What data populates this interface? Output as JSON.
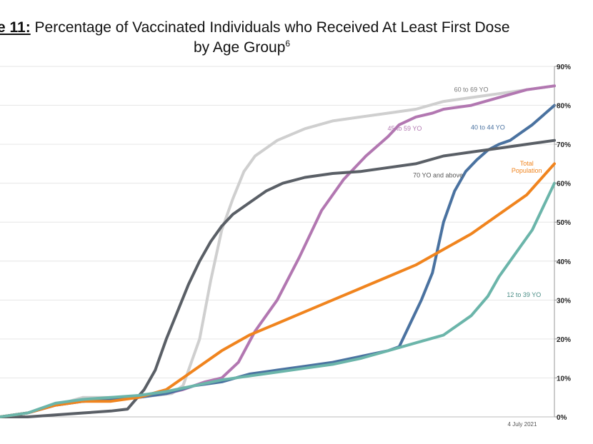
{
  "title": {
    "fig_label": "e 11:",
    "line1_text": " Percentage of Vaccinated Individuals who Received At Least First Dose",
    "line2_text": "by Age Group",
    "footnote": "6"
  },
  "chart_data": {
    "type": "line",
    "x_axis_label": "4 July 2021",
    "x_range": [
      0,
      100
    ],
    "ylim": [
      0,
      90
    ],
    "y_ticks": [
      0,
      10,
      20,
      30,
      40,
      50,
      60,
      70,
      80,
      90
    ],
    "y_tick_labels": [
      "0%",
      "10%",
      "20%",
      "30%",
      "40%",
      "50%",
      "60%",
      "70%",
      "80%",
      "90%"
    ],
    "grid": "horizontal",
    "series": [
      {
        "name": "60 to 69 YO",
        "color": "#cfcfcf",
        "label_color": "#777777",
        "x": [
          0,
          5,
          10,
          15,
          20,
          25,
          28,
          31,
          33,
          36,
          38,
          40,
          42,
          44,
          46,
          48,
          50,
          55,
          60,
          65,
          70,
          75,
          80,
          85,
          90,
          95,
          100
        ],
        "y": [
          0,
          1,
          3,
          5,
          5,
          5,
          5.5,
          6,
          8,
          20,
          35,
          48,
          56,
          63,
          67,
          69,
          71,
          74,
          76,
          77,
          78,
          79,
          81,
          82,
          83,
          84,
          85
        ]
      },
      {
        "name": "45 to 59 YO",
        "color": "#b277b1",
        "label_color": "#b277b1",
        "x": [
          0,
          5,
          10,
          15,
          20,
          25,
          30,
          33,
          37,
          40,
          43,
          46,
          50,
          54,
          58,
          62,
          66,
          70,
          72,
          75,
          78,
          80,
          85,
          90,
          95,
          100
        ],
        "y": [
          0,
          1,
          3,
          4,
          4.5,
          5,
          6,
          7,
          9,
          10,
          14,
          22,
          30,
          41,
          53,
          61,
          67,
          72,
          75,
          77,
          78,
          79,
          80,
          82,
          84,
          85
        ]
      },
      {
        "name": "40 to 44 YO",
        "color": "#4a72a0",
        "label_color": "#4a72a0",
        "x": [
          0,
          5,
          10,
          15,
          20,
          25,
          30,
          35,
          40,
          45,
          50,
          55,
          60,
          65,
          70,
          72,
          74,
          76,
          78,
          80,
          82,
          84,
          86,
          88,
          90,
          92,
          94,
          96,
          98,
          100
        ],
        "y": [
          0,
          1,
          3,
          4,
          4.5,
          5,
          6,
          8,
          9,
          11,
          12,
          13,
          14,
          15.5,
          17,
          18,
          24,
          30,
          37,
          50,
          58,
          63,
          66,
          68.5,
          70,
          71,
          73,
          75,
          77.5,
          80
        ]
      },
      {
        "name": "70 YO and above",
        "color": "#5a5f66",
        "label_color": "#555555",
        "x": [
          0,
          5,
          10,
          15,
          20,
          23,
          26,
          28,
          30,
          32,
          34,
          36,
          38,
          40,
          42,
          45,
          48,
          51,
          55,
          60,
          65,
          70,
          75,
          80,
          85,
          90,
          95,
          100
        ],
        "y": [
          0,
          0,
          0.5,
          1,
          1.5,
          2,
          7,
          12,
          20,
          27,
          34,
          40,
          45,
          49,
          52,
          55,
          58,
          60,
          61.5,
          62.5,
          63,
          64,
          65,
          67,
          68,
          69,
          70,
          71
        ]
      },
      {
        "name": "Total Population",
        "name_lines": [
          "Total",
          "Population"
        ],
        "color": "#f0841e",
        "label_color": "#f0841e",
        "x": [
          0,
          5,
          10,
          15,
          20,
          25,
          30,
          35,
          40,
          45,
          50,
          55,
          60,
          65,
          70,
          75,
          80,
          85,
          90,
          95,
          100
        ],
        "y": [
          0,
          1,
          3,
          4,
          4,
          5,
          7,
          12,
          17,
          21,
          24,
          27,
          30,
          33,
          36,
          39,
          43,
          47,
          52,
          57,
          65
        ]
      },
      {
        "name": "12 to 39 YO",
        "color": "#6bb5aa",
        "label_color": "#4a8d86",
        "x": [
          0,
          5,
          10,
          15,
          20,
          25,
          30,
          35,
          40,
          45,
          50,
          55,
          60,
          65,
          70,
          75,
          80,
          85,
          88,
          90,
          92,
          94,
          96,
          98,
          100
        ],
        "y": [
          0,
          1,
          3.5,
          4.5,
          5,
          5.5,
          6.5,
          8,
          9.5,
          10.5,
          11.5,
          12.5,
          13.5,
          15,
          17,
          19,
          21,
          26,
          31,
          36,
          40,
          44,
          48,
          54,
          60
        ]
      }
    ]
  }
}
